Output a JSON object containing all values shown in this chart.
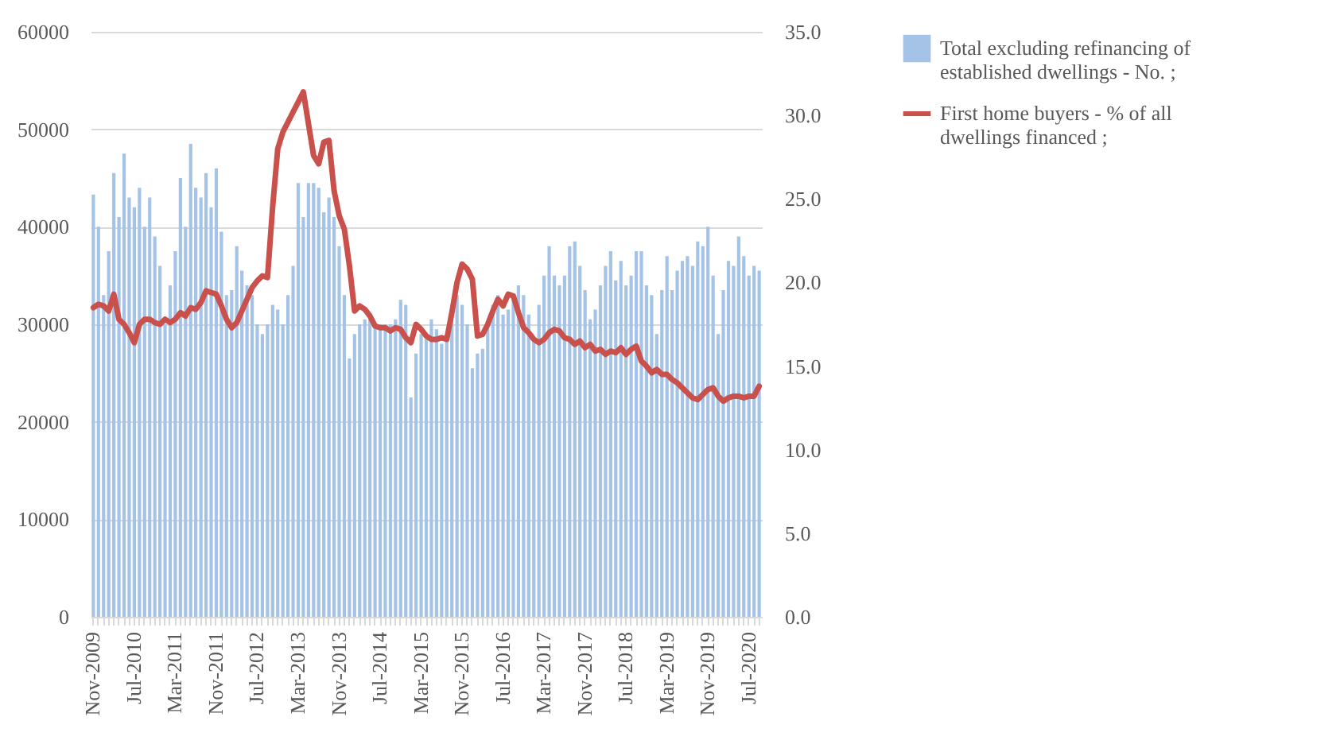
{
  "chart_data": {
    "type": "bar",
    "categories": [
      "Nov-2009",
      null,
      null,
      null,
      null,
      null,
      null,
      null,
      "Jul-2010",
      null,
      null,
      null,
      null,
      null,
      null,
      null,
      "Mar-2011",
      null,
      null,
      null,
      null,
      null,
      null,
      null,
      "Nov-2011",
      null,
      null,
      null,
      null,
      null,
      null,
      null,
      "Jul-2012",
      null,
      null,
      null,
      null,
      null,
      null,
      null,
      "Mar-2013",
      null,
      null,
      null,
      null,
      null,
      null,
      null,
      "Nov-2013",
      null,
      null,
      null,
      null,
      null,
      null,
      null,
      "Jul-2014",
      null,
      null,
      null,
      null,
      null,
      null,
      null,
      "Mar-2015",
      null,
      null,
      null,
      null,
      null,
      null,
      null,
      "Nov-2015",
      null,
      null,
      null,
      null,
      null,
      null,
      null,
      "Jul-2016",
      null,
      null,
      null,
      null,
      null,
      null,
      null,
      "Mar-2017",
      null,
      null,
      null,
      null,
      null,
      null,
      null,
      "Nov-2017",
      null,
      null,
      null,
      null,
      null,
      null,
      null,
      "Jul-2018",
      null,
      null,
      null,
      null,
      null,
      null,
      null,
      "Mar-2019",
      null,
      null,
      null,
      null,
      null,
      null,
      null,
      "Nov-2019",
      null,
      null,
      null,
      null,
      null,
      null,
      null,
      "Jul-2020",
      null,
      null
    ],
    "series": [
      {
        "name": "Total excluding refinancing of established dwellings - No. ;",
        "color": "#a4c3e6",
        "values": [
          43300,
          40000,
          33000,
          37500,
          45500,
          41000,
          47500,
          43000,
          42000,
          44000,
          40000,
          43000,
          39000,
          36000,
          30000,
          34000,
          37500,
          45000,
          40000,
          48500,
          44000,
          43000,
          45500,
          42000,
          46000,
          39500,
          33000,
          33500,
          38000,
          35500,
          34000,
          33000,
          30000,
          29000,
          30000,
          32000,
          31500,
          30000,
          33000,
          36000,
          44500,
          41000,
          44500,
          44500,
          44000,
          41500,
          43000,
          41000,
          38000,
          33000,
          26500,
          29000,
          30000,
          30500,
          31000,
          30000,
          30000,
          30000,
          30000,
          30500,
          32500,
          32000,
          22500,
          27000,
          29000,
          28500,
          30500,
          29500,
          28000,
          29000,
          31000,
          33000,
          32000,
          30000,
          25500,
          27000,
          27500,
          30000,
          32000,
          33000,
          31000,
          31500,
          33000,
          34000,
          33000,
          31000,
          28500,
          32000,
          35000,
          38000,
          35000,
          34000,
          35000,
          38000,
          38500,
          36000,
          33500,
          30500,
          31500,
          34000,
          36000,
          37500,
          34500,
          36500,
          34000,
          35000,
          37500,
          37500,
          34000,
          33000,
          29000,
          33500,
          37000,
          33500,
          35500,
          36500,
          37000,
          36000,
          38500,
          38000,
          40000,
          35000,
          29000,
          33500,
          36500,
          36000,
          39000,
          37000,
          35000,
          36000,
          35500
        ]
      },
      {
        "name": "First home buyers - % of all dwellings financed ;",
        "type": "line",
        "axis": "y2",
        "color": "#c9504b",
        "values": [
          18.5,
          18.7,
          18.6,
          18.3,
          19.3,
          17.8,
          17.5,
          17.0,
          16.4,
          17.5,
          17.8,
          17.8,
          17.6,
          17.5,
          17.8,
          17.6,
          17.8,
          18.2,
          18.0,
          18.5,
          18.4,
          18.8,
          19.5,
          19.4,
          19.3,
          18.6,
          17.8,
          17.3,
          17.6,
          18.3,
          19.0,
          19.7,
          20.1,
          20.4,
          20.3,
          24.5,
          28.0,
          29.0,
          29.6,
          30.2,
          30.8,
          31.4,
          29.5,
          27.6,
          27.1,
          28.4,
          28.5,
          25.5,
          24.0,
          23.2,
          21.0,
          18.3,
          18.6,
          18.4,
          18.0,
          17.4,
          17.3,
          17.3,
          17.1,
          17.3,
          17.2,
          16.7,
          16.4,
          17.5,
          17.2,
          16.8,
          16.6,
          16.6,
          16.7,
          16.6,
          18.2,
          20.0,
          21.1,
          20.8,
          20.2,
          16.8,
          16.9,
          17.5,
          18.3,
          19.0,
          18.6,
          19.3,
          19.2,
          18.2,
          17.3,
          17.0,
          16.6,
          16.4,
          16.6,
          17.0,
          17.2,
          17.1,
          16.7,
          16.6,
          16.3,
          16.5,
          16.1,
          16.3,
          15.9,
          16.0,
          15.7,
          15.9,
          15.8,
          16.1,
          15.7,
          16.0,
          16.2,
          15.3,
          15.0,
          14.6,
          14.8,
          14.5,
          14.5,
          14.2,
          14.0,
          13.7,
          13.4,
          13.1,
          13.0,
          13.3,
          13.6,
          13.7,
          13.2,
          12.9,
          13.1,
          13.2,
          13.2,
          13.1,
          13.2,
          13.2,
          13.8
        ]
      }
    ],
    "ylim": [
      0,
      60000
    ],
    "yticks": [
      0,
      10000,
      20000,
      30000,
      40000,
      50000,
      60000
    ],
    "y2lim": [
      0,
      35
    ],
    "y2ticks": [
      {
        "value": 0,
        "label": "0.0"
      },
      {
        "value": 5,
        "label": "5.0"
      },
      {
        "value": 10,
        "label": "10.0"
      },
      {
        "value": 15,
        "label": "15.0"
      },
      {
        "value": 20,
        "label": "20.0"
      },
      {
        "value": 25,
        "label": "25.0"
      },
      {
        "value": 30,
        "label": "30.0"
      },
      {
        "value": 35,
        "label": "35.0"
      }
    ],
    "grid": "y",
    "legend": "right"
  }
}
